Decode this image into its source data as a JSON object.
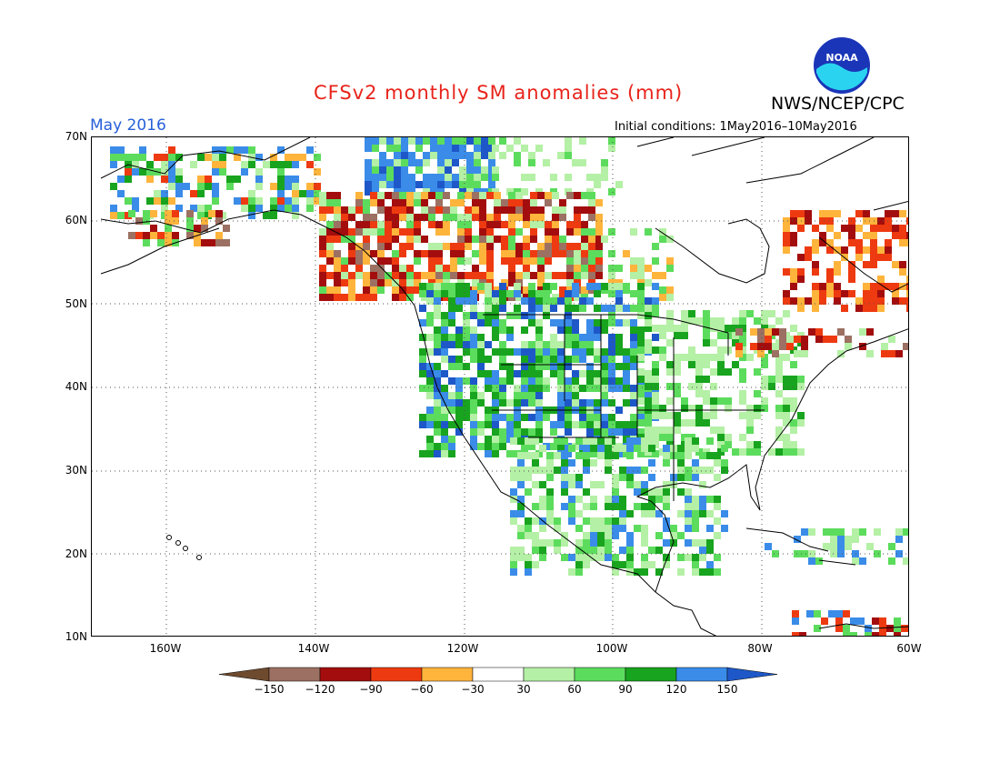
{
  "header": {
    "title": "CFSv2 monthly SM anomalies (mm)",
    "org": "NWS/NCEP/CPC",
    "month": "May 2016",
    "initial_conditions": "Initial conditions: 1May2016–10May2016",
    "logo_text": "NOAA"
  },
  "axes": {
    "lat_labels": [
      "70N",
      "60N",
      "50N",
      "40N",
      "30N",
      "20N",
      "10N"
    ],
    "lon_labels": [
      "160W",
      "140W",
      "120W",
      "100W",
      "80W",
      "60W"
    ]
  },
  "colorbar": {
    "labels": [
      "−150",
      "−120",
      "−90",
      "−60",
      "−30",
      "30",
      "60",
      "90",
      "120",
      "150"
    ],
    "colors": [
      "#6e4a2e",
      "#9c7062",
      "#a30d0d",
      "#ee3a10",
      "#ffb43c",
      "#ffffff",
      "#b4f0a5",
      "#5cdc5c",
      "#18a41e",
      "#3a8ce8",
      "#1e58c8"
    ]
  },
  "map": {
    "grid": "dotted",
    "legend_position": "bottom",
    "lat_range": [
      "10N",
      "70N"
    ],
    "lon_range": [
      "170W",
      "60W"
    ]
  }
}
